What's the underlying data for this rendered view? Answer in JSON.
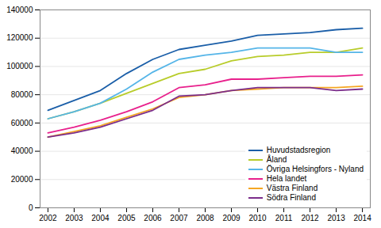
{
  "chart_data": {
    "type": "line",
    "x": [
      2002,
      2003,
      2004,
      2005,
      2006,
      2007,
      2008,
      2009,
      2010,
      2011,
      2012,
      2013,
      2014
    ],
    "series": [
      {
        "name": "Huvudstadsregion",
        "color": "#1A5EA8",
        "values": [
          69000,
          76000,
          83000,
          95000,
          105000,
          112000,
          115000,
          118000,
          122000,
          123000,
          124000,
          126000,
          127000
        ]
      },
      {
        "name": "Åland",
        "color": "#B8CC2A",
        "values": [
          63000,
          68000,
          74000,
          81000,
          88000,
          95000,
          98000,
          104000,
          107000,
          108000,
          110000,
          110000,
          113000
        ]
      },
      {
        "name": "Övriga Helsingfors - Nyland",
        "color": "#55B5E8",
        "values": [
          63000,
          68000,
          74000,
          84000,
          96000,
          105000,
          108000,
          110000,
          113000,
          113000,
          113000,
          110000,
          110000
        ]
      },
      {
        "name": "Hela landet",
        "color": "#E8208C",
        "values": [
          53000,
          57000,
          62000,
          68000,
          75000,
          85000,
          87000,
          91000,
          91000,
          92000,
          93000,
          93000,
          94000
        ]
      },
      {
        "name": "Västra Finland",
        "color": "#F5A623",
        "values": [
          50000,
          54000,
          58000,
          64000,
          70000,
          78000,
          80000,
          83000,
          84000,
          85000,
          85000,
          85000,
          86000
        ]
      },
      {
        "name": "Södra Finland",
        "color": "#7B2D8B",
        "values": [
          50000,
          53000,
          57000,
          63000,
          69000,
          79000,
          80000,
          83000,
          85000,
          85000,
          85000,
          83000,
          84000
        ]
      }
    ],
    "xlim": [
      2001.7,
      2014.3
    ],
    "xticks": [
      2002,
      2003,
      2004,
      2005,
      2006,
      2007,
      2008,
      2009,
      2010,
      2011,
      2012,
      2013,
      2014
    ],
    "ylim": [
      0,
      140000
    ],
    "yticks": [
      0,
      20000,
      40000,
      60000,
      80000,
      100000,
      120000,
      140000
    ],
    "grid": true,
    "legend": "lower right"
  }
}
